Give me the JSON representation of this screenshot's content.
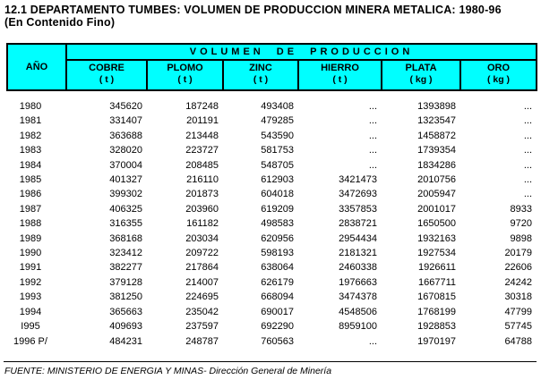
{
  "title": {
    "line1": "12.1  DEPARTAMENTO TUMBES: VOLUMEN DE PRODUCCION MINERA METALICA: 1980-96",
    "line2": "(En Contenido Fino)"
  },
  "table": {
    "year_header": "AÑO",
    "group_header": "VOLUMEN DE PRODUCCION",
    "columns": [
      {
        "label": "COBRE",
        "unit": "( t )"
      },
      {
        "label": "PLOMO",
        "unit": "( t )"
      },
      {
        "label": "ZINC",
        "unit": "( t )"
      },
      {
        "label": "HIERRO",
        "unit": "( t )"
      },
      {
        "label": "PLATA",
        "unit": "( kg )"
      },
      {
        "label": "ORO",
        "unit": "( kg )"
      }
    ],
    "rows": [
      [
        "1980",
        "345620",
        "187248",
        "493408",
        "...",
        "1393898",
        "..."
      ],
      [
        "1981",
        "331407",
        "201191",
        "479285",
        "...",
        "1323547",
        "..."
      ],
      [
        "1982",
        "363688",
        "213448",
        "543590",
        "...",
        "1458872",
        "..."
      ],
      [
        "1983",
        "328020",
        "223727",
        "581753",
        "...",
        "1739354",
        "..."
      ],
      [
        "1984",
        "370004",
        "208485",
        "548705",
        "...",
        "1834286",
        "..."
      ],
      [
        "1985",
        "401327",
        "216110",
        "612903",
        "3421473",
        "2010756",
        "..."
      ],
      [
        "1986",
        "399302",
        "201873",
        "604018",
        "3472693",
        "2005947",
        "..."
      ],
      [
        "1987",
        "406325",
        "203960",
        "619209",
        "3357853",
        "2001017",
        "8933"
      ],
      [
        "1988",
        "316355",
        "161182",
        "498583",
        "2838721",
        "1650500",
        "9720"
      ],
      [
        "1989",
        "368168",
        "203034",
        "620956",
        "2954434",
        "1932163",
        "9898"
      ],
      [
        "1990",
        "323412",
        "209722",
        "598193",
        "2181321",
        "1927534",
        "20179"
      ],
      [
        "1991",
        "382277",
        "217864",
        "638064",
        "2460338",
        "1926611",
        "22606"
      ],
      [
        "1992",
        "379128",
        "214007",
        "626179",
        "1976663",
        "1667711",
        "24242"
      ],
      [
        "1993",
        "381250",
        "224695",
        "668094",
        "3474378",
        "1670815",
        "30318"
      ],
      [
        "1994",
        "365663",
        "235042",
        "690017",
        "4548506",
        "1768199",
        "47799"
      ],
      [
        "I995",
        "409693",
        "237597",
        "692290",
        "8959100",
        "1928853",
        "57745"
      ],
      [
        "1996 P/",
        "484231",
        "248787",
        "760563",
        "...",
        "1970197",
        "64788"
      ]
    ]
  },
  "footer": {
    "source": "FUENTE: MINISTERIO DE ENERGIA Y MINAS- Dirección General de Minería"
  },
  "colors": {
    "header_bg": "#00FFFF",
    "border": "#000000",
    "text": "#000000",
    "page_bg": "#FFFFFF"
  }
}
